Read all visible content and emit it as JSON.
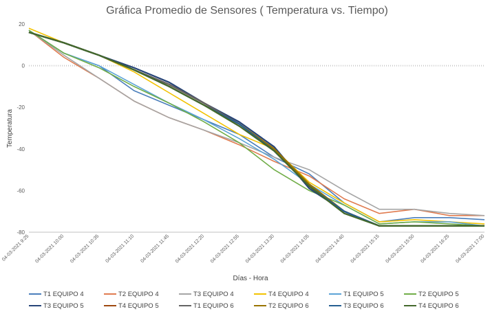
{
  "chart_data": {
    "type": "line",
    "title": "Gráfica Promedio de Sensores ( Temperatura vs. Tiempo)",
    "xlabel": "Días - Hora",
    "ylabel": "Temperatura",
    "ylim": [
      -80,
      20
    ],
    "yticks": [
      -80,
      -60,
      -40,
      -20,
      0,
      20
    ],
    "x_ticks": [
      "04-03-2021 9:25",
      "04-03-2021 10:00",
      "04-03-2021 10:35",
      "04-03-2021 11:10",
      "04-03-2021 11:45",
      "04-03-2021 12:20",
      "04-03-2021 12:55",
      "04-03-2021 13:30",
      "04-03-2021 14:05",
      "04-03-2021 14:40",
      "04-03-2021 15:15",
      "04-03-2021 15:50",
      "04-03-2021 16:25",
      "04-03-2021 17:00"
    ],
    "x": [
      "04-03-2021 9:25",
      "04-03-2021 10:00",
      "04-03-2021 10:35",
      "04-03-2021 11:10",
      "04-03-2021 11:45",
      "04-03-2021 12:20",
      "04-03-2021 12:55",
      "04-03-2021 13:30",
      "04-03-2021 14:05",
      "04-03-2021 14:40",
      "04-03-2021 15:15",
      "04-03-2021 15:50",
      "04-03-2021 16:25",
      "04-03-2021 17:00"
    ],
    "grid": "horizontal dotted line at 0",
    "legend_position": "bottom",
    "series": [
      {
        "name": "T1 EQUIPO 4",
        "color": "#4a7ebb",
        "values": [
          17,
          6,
          0,
          -12,
          -19,
          -26,
          -33,
          -44,
          -52,
          -66,
          -75,
          -73,
          -73,
          -74
        ]
      },
      {
        "name": "T2 EQUIPO 4",
        "color": "#e07b4f",
        "values": [
          17,
          4,
          -6,
          -17,
          -25,
          -31,
          -38,
          -46,
          -53,
          -64,
          -71,
          -69,
          -72,
          -72
        ]
      },
      {
        "name": "T3 EQUIPO 4",
        "color": "#a5a5a5",
        "values": [
          17,
          5,
          -6,
          -17,
          -25,
          -31,
          -37,
          -44,
          -50,
          -60,
          -69,
          -69,
          -71,
          -72
        ]
      },
      {
        "name": "T4 EQUIPO 4",
        "color": "#f2c200",
        "values": [
          18,
          11,
          5,
          -3,
          -13,
          -23,
          -33,
          -40,
          -56,
          -66,
          -75,
          -74,
          -75,
          -76
        ]
      },
      {
        "name": "T1 EQUIPO 5",
        "color": "#5ba3d6",
        "values": [
          17,
          6,
          0,
          -9,
          -18,
          -26,
          -35,
          -45,
          -57,
          -67,
          -76,
          -75,
          -75,
          -77
        ]
      },
      {
        "name": "T2 EQUIPO 5",
        "color": "#70ad47",
        "values": [
          17,
          6,
          -1,
          -10,
          -18,
          -27,
          -37,
          -50,
          -60,
          -67,
          -76,
          -75,
          -76,
          -77
        ]
      },
      {
        "name": "T3 EQUIPO 5",
        "color": "#264478",
        "values": [
          16,
          11,
          5,
          -1,
          -8,
          -18,
          -27,
          -39,
          -59,
          -70,
          -77,
          -77,
          -77,
          -77
        ]
      },
      {
        "name": "T4 EQUIPO 5",
        "color": "#9e480e",
        "values": [
          16,
          11,
          5,
          -2,
          -9,
          -18,
          -28,
          -40,
          -57,
          -70,
          -77,
          -77,
          -77,
          -77
        ]
      },
      {
        "name": "T1 EQUIPO 6",
        "color": "#636363",
        "values": [
          16,
          11,
          5,
          -2,
          -9,
          -18,
          -28,
          -40,
          -57,
          -70,
          -77,
          -77,
          -77,
          -77
        ]
      },
      {
        "name": "T2 EQUIPO 6",
        "color": "#997300",
        "values": [
          16,
          11,
          5,
          -2,
          -10,
          -19,
          -28,
          -40,
          -57,
          -70,
          -77,
          -77,
          -77,
          -77
        ]
      },
      {
        "name": "T3 EQUIPO 6",
        "color": "#255e91",
        "values": [
          16,
          11,
          5,
          -2,
          -10,
          -19,
          -28,
          -41,
          -58,
          -70,
          -77,
          -77,
          -77,
          -77
        ]
      },
      {
        "name": "T4 EQUIPO 6",
        "color": "#43682b",
        "values": [
          16,
          11,
          5,
          -2,
          -10,
          -19,
          -29,
          -41,
          -58,
          -71,
          -77,
          -77,
          -77,
          -77
        ]
      }
    ]
  }
}
